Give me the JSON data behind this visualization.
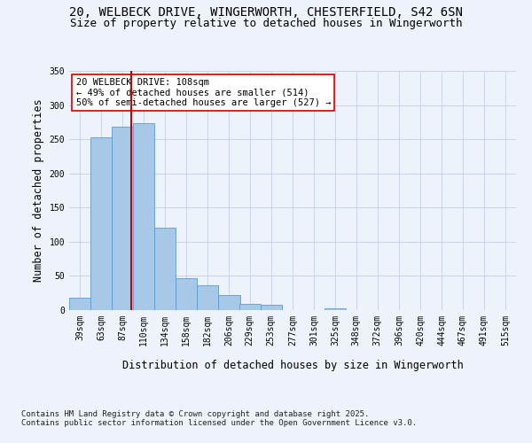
{
  "title_line1": "20, WELBECK DRIVE, WINGERWORTH, CHESTERFIELD, S42 6SN",
  "title_line2": "Size of property relative to detached houses in Wingerworth",
  "xlabel": "Distribution of detached houses by size in Wingerworth",
  "ylabel": "Number of detached properties",
  "bar_color": "#a8c8e8",
  "bar_edge_color": "#5b9bd5",
  "annotation_text": "20 WELBECK DRIVE: 108sqm\n← 49% of detached houses are smaller (514)\n50% of semi-detached houses are larger (527) →",
  "vline_x": 108,
  "vline_color": "#cc0000",
  "categories": [
    "39sqm",
    "63sqm",
    "87sqm",
    "110sqm",
    "134sqm",
    "158sqm",
    "182sqm",
    "206sqm",
    "229sqm",
    "253sqm",
    "277sqm",
    "301sqm",
    "325sqm",
    "348sqm",
    "372sqm",
    "396sqm",
    "420sqm",
    "444sqm",
    "467sqm",
    "491sqm",
    "515sqm"
  ],
  "bin_edges": [
    39,
    63,
    87,
    110,
    134,
    158,
    182,
    206,
    229,
    253,
    277,
    301,
    325,
    348,
    372,
    396,
    420,
    444,
    467,
    491,
    515
  ],
  "bin_width": 24,
  "values": [
    18,
    253,
    268,
    273,
    121,
    47,
    36,
    22,
    9,
    8,
    0,
    0,
    3,
    0,
    0,
    0,
    0,
    0,
    0,
    0,
    0
  ],
  "ylim": [
    0,
    350
  ],
  "yticks": [
    0,
    50,
    100,
    150,
    200,
    250,
    300,
    350
  ],
  "background_color": "#eef2fb",
  "grid_color": "#c8d4e8",
  "footer_text": "Contains HM Land Registry data © Crown copyright and database right 2025.\nContains public sector information licensed under the Open Government Licence v3.0.",
  "annotation_box_color": "#ffffff",
  "annotation_box_edge": "#cc0000",
  "title_fontsize": 10,
  "subtitle_fontsize": 9,
  "axis_label_fontsize": 8.5,
  "tick_fontsize": 7,
  "annotation_fontsize": 7.5,
  "footer_fontsize": 6.5
}
